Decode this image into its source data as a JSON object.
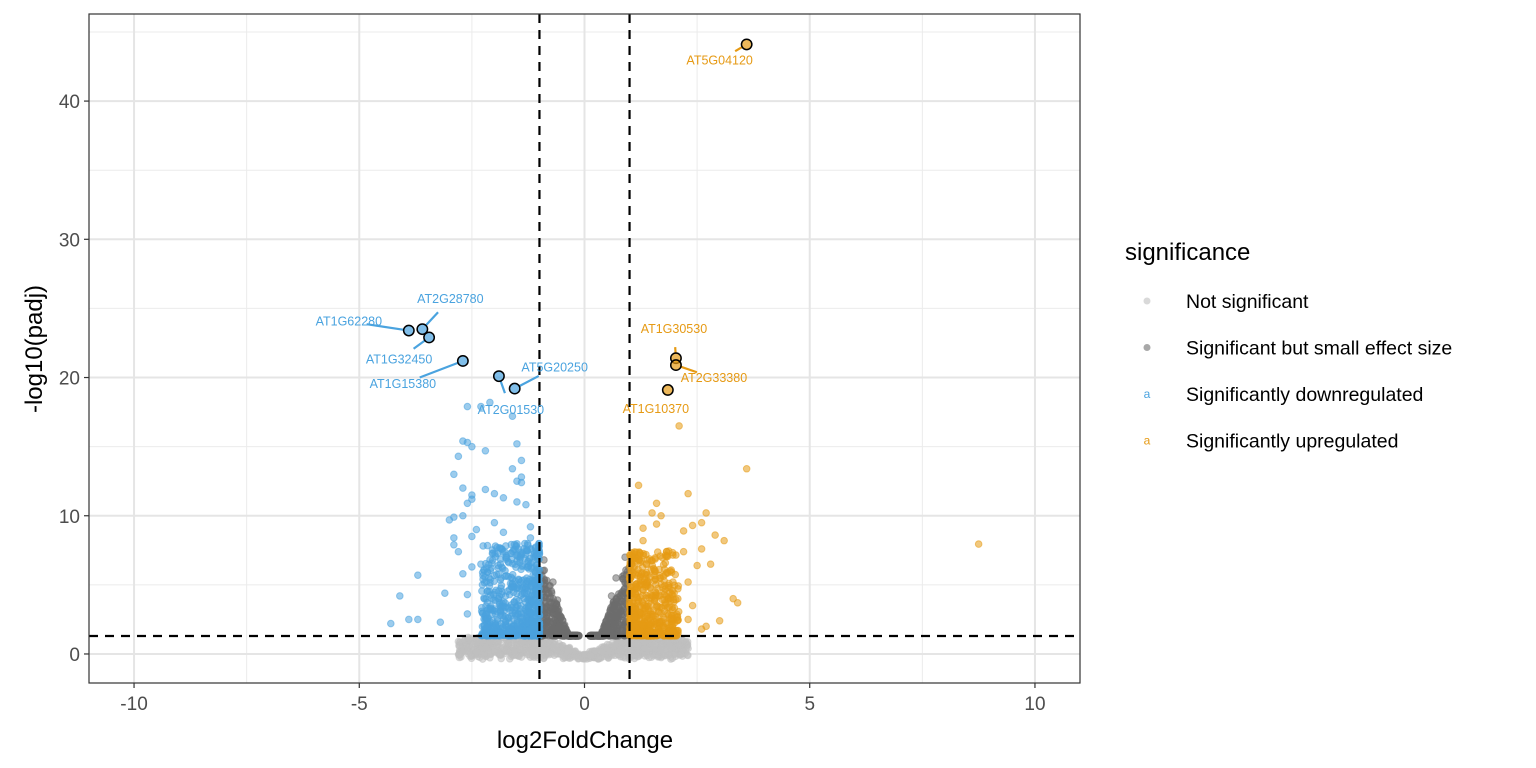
{
  "chart_data": {
    "type": "scatter",
    "subtype": "volcano",
    "title": "",
    "xlabel": "log2FoldChange",
    "ylabel": "-log10(padj)",
    "xlim": [
      -11,
      11
    ],
    "ylim": [
      -2.1,
      46.3
    ],
    "x_ticks": [
      -10,
      -5,
      0,
      5,
      10
    ],
    "x_tick_labels": [
      "-10",
      "-5",
      "0",
      "5",
      "10"
    ],
    "y_ticks": [
      0,
      10,
      20,
      30,
      40
    ],
    "y_tick_labels": [
      "0",
      "10",
      "20",
      "30",
      "40"
    ],
    "grid": true,
    "thresholds": {
      "log2fc": [
        -1,
        1
      ],
      "neg_log10_padj": 1.3
    },
    "legend": {
      "title": "significance",
      "position": "right",
      "entries": [
        {
          "label": "Not significant",
          "color": "#c0c0c0",
          "key": "point"
        },
        {
          "label": "Significant but small effect size",
          "color": "#6e6e6e",
          "key": "point"
        },
        {
          "label": "Significantly downregulated",
          "color": "#4aa3df",
          "key": "text"
        },
        {
          "label": "Significantly upregulated",
          "color": "#e69a14",
          "key": "text"
        }
      ]
    },
    "series": [
      {
        "name": "Not significant",
        "color": "#c0c0c0",
        "cloud": {
          "x_range": [
            -2.8,
            2.3
          ],
          "y_max_at_edge": 1.3,
          "y_min": -0.05,
          "n": 900
        },
        "points": [
          [
            -2.8,
            0.9
          ],
          [
            -2.6,
            0.2
          ],
          [
            -2.4,
            0.1
          ],
          [
            -2.2,
            0.5
          ],
          [
            2.3,
            0.4
          ],
          [
            2.1,
            0.6
          ],
          [
            1.8,
            0.2
          ],
          [
            2.0,
            1.0
          ]
        ]
      },
      {
        "name": "Significant but small effect size",
        "color": "#6e6e6e",
        "cloud": {
          "x_range": [
            -1,
            1
          ],
          "y_max_at_edge": 7,
          "y_min": 1.3,
          "n": 700
        },
        "points": [
          [
            -0.9,
            6.8
          ],
          [
            0.9,
            7.0
          ],
          [
            -0.7,
            5.2
          ],
          [
            0.7,
            5.5
          ],
          [
            -0.6,
            3.9
          ],
          [
            0.6,
            4.2
          ]
        ]
      },
      {
        "name": "Significantly downregulated",
        "color": "#4aa3df",
        "cloud": {
          "x_range": [
            -2.2,
            -1
          ],
          "y_range": [
            1.3,
            8
          ],
          "n": 650
        },
        "points": [
          [
            -4.3,
            2.2
          ],
          [
            -3.9,
            2.5
          ],
          [
            -3.7,
            2.5
          ],
          [
            -4.1,
            4.2
          ],
          [
            -3.7,
            5.7
          ],
          [
            -3.1,
            4.4
          ],
          [
            -2.6,
            2.9
          ],
          [
            -3.2,
            2.3
          ],
          [
            -2.3,
            6.5
          ],
          [
            -2.5,
            6.3
          ],
          [
            -2.9,
            8.4
          ],
          [
            -2.9,
            7.9
          ],
          [
            -2.8,
            7.4
          ],
          [
            -2.5,
            8.5
          ],
          [
            -2.7,
            5.8
          ],
          [
            -2.6,
            4.3
          ],
          [
            -2.7,
            10.0
          ],
          [
            -2.5,
            11.2
          ],
          [
            -2.5,
            11.5
          ],
          [
            -2.2,
            11.9
          ],
          [
            -2.0,
            11.6
          ],
          [
            -1.8,
            11.3
          ],
          [
            -1.5,
            11.0
          ],
          [
            -1.3,
            10.8
          ],
          [
            -2.9,
            13.0
          ],
          [
            -2.7,
            12.0
          ],
          [
            -2.6,
            10.9
          ],
          [
            -1.6,
            13.4
          ],
          [
            -1.4,
            12.4
          ],
          [
            -1.4,
            12.8
          ],
          [
            -1.5,
            12.5
          ],
          [
            -2.8,
            14.3
          ],
          [
            -2.7,
            15.4
          ],
          [
            -2.6,
            15.3
          ],
          [
            -2.5,
            15.0
          ],
          [
            -2.2,
            14.7
          ],
          [
            -1.5,
            15.2
          ],
          [
            -1.4,
            14.0
          ],
          [
            -3.0,
            9.7
          ],
          [
            -2.9,
            9.9
          ],
          [
            -2.4,
            9.0
          ],
          [
            -2.0,
            9.5
          ],
          [
            -1.8,
            8.8
          ],
          [
            -1.2,
            8.4
          ],
          [
            -1.2,
            9.2
          ],
          [
            -2.3,
            17.9
          ],
          [
            -2.1,
            18.2
          ],
          [
            -1.6,
            17.2
          ],
          [
            -2.6,
            17.9
          ]
        ]
      },
      {
        "name": "Significantly upregulated",
        "color": "#e69a14",
        "cloud": {
          "x_range": [
            1,
            2.0
          ],
          "y_range": [
            1.3,
            7.5
          ],
          "n": 550
        },
        "points": [
          [
            1.2,
            12.2
          ],
          [
            1.6,
            10.9
          ],
          [
            1.5,
            10.2
          ],
          [
            1.6,
            9.4
          ],
          [
            1.7,
            10.0
          ],
          [
            1.3,
            9.1
          ],
          [
            2.3,
            11.6
          ],
          [
            2.7,
            10.2
          ],
          [
            2.6,
            9.5
          ],
          [
            3.1,
            8.2
          ],
          [
            2.4,
            9.3
          ],
          [
            2.2,
            8.9
          ],
          [
            2.9,
            8.6
          ],
          [
            2.6,
            7.6
          ],
          [
            2.2,
            7.4
          ],
          [
            2.5,
            6.4
          ],
          [
            2.3,
            5.2
          ],
          [
            2.8,
            6.5
          ],
          [
            2.4,
            3.5
          ],
          [
            2.3,
            2.5
          ],
          [
            2.7,
            2.0
          ],
          [
            2.6,
            1.8
          ],
          [
            3.0,
            2.4
          ],
          [
            3.3,
            4.0
          ],
          [
            3.4,
            3.7
          ],
          [
            3.6,
            13.4
          ],
          [
            2.1,
            16.5
          ],
          [
            8.75,
            7.95
          ],
          [
            1.3,
            8.2
          ],
          [
            1.9,
            6.0
          ],
          [
            1.4,
            6.8
          ]
        ]
      }
    ],
    "labeled_genes": [
      {
        "gene": "AT5G04120",
        "log2FoldChange": 3.6,
        "neg_log10_padj": 44.1,
        "group": "Significantly upregulated"
      },
      {
        "gene": "AT1G30530",
        "log2FoldChange": 2.03,
        "neg_log10_padj": 21.4,
        "group": "Significantly upregulated"
      },
      {
        "gene": "AT2G33380",
        "log2FoldChange": 2.03,
        "neg_log10_padj": 20.9,
        "group": "Significantly upregulated"
      },
      {
        "gene": "AT1G10370",
        "log2FoldChange": 1.85,
        "neg_log10_padj": 19.1,
        "group": "Significantly upregulated"
      },
      {
        "gene": "AT1G62280",
        "log2FoldChange": -3.9,
        "neg_log10_padj": 23.4,
        "group": "Significantly downregulated"
      },
      {
        "gene": "AT2G28780",
        "log2FoldChange": -3.6,
        "neg_log10_padj": 23.5,
        "group": "Significantly downregulated"
      },
      {
        "gene": "AT1G32450",
        "log2FoldChange": -3.45,
        "neg_log10_padj": 22.9,
        "group": "Significantly downregulated"
      },
      {
        "gene": "AT1G15380",
        "log2FoldChange": -2.7,
        "neg_log10_padj": 21.2,
        "group": "Significantly downregulated"
      },
      {
        "gene": "AT2G01530",
        "log2FoldChange": -1.9,
        "neg_log10_padj": 20.1,
        "group": "Significantly downregulated"
      },
      {
        "gene": "AT5G20250",
        "log2FoldChange": -1.55,
        "neg_log10_padj": 19.2,
        "group": "Significantly downregulated"
      }
    ]
  }
}
